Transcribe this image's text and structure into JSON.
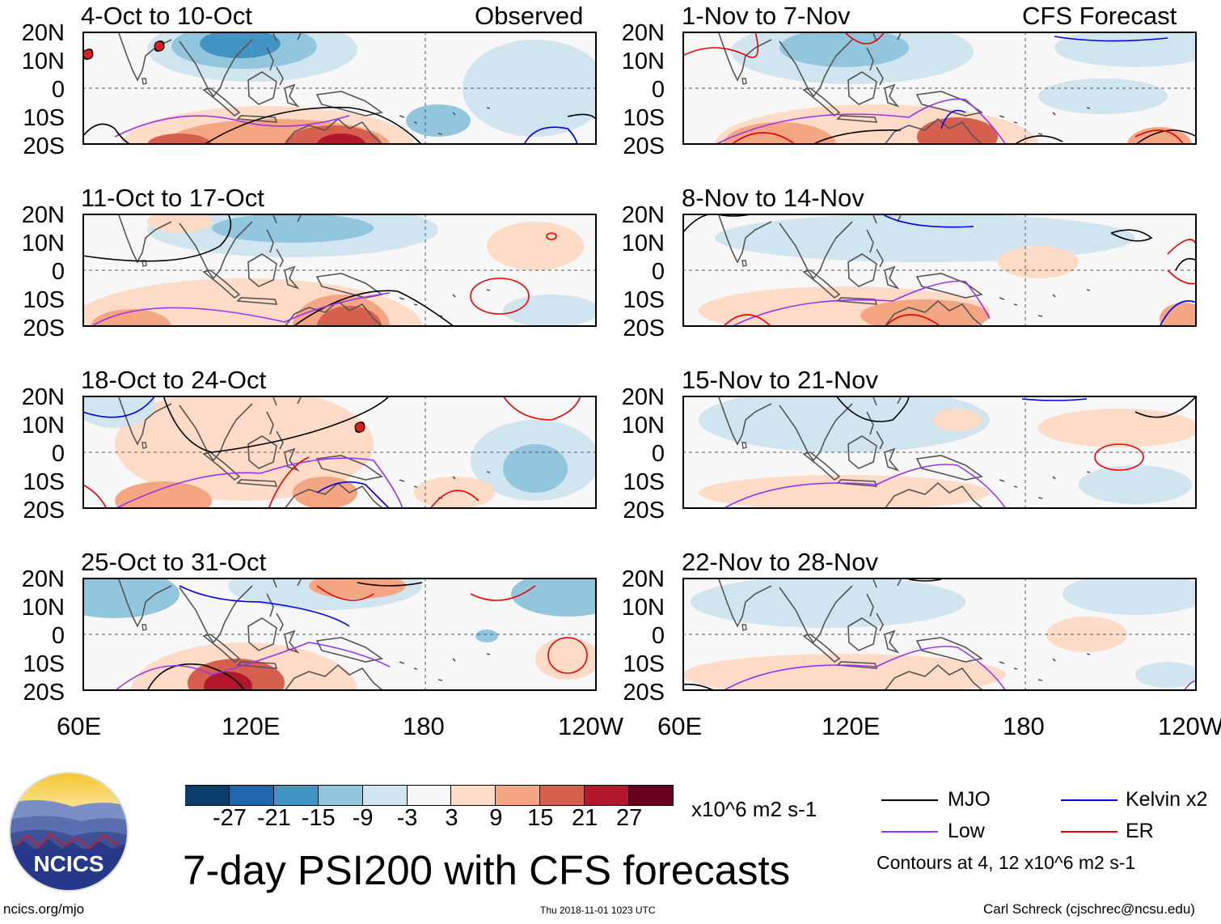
{
  "panels": {
    "left": [
      {
        "title": "4-Oct to 10-Oct",
        "tag": "Observed"
      },
      {
        "title": "11-Oct to 17-Oct",
        "tag": ""
      },
      {
        "title": "18-Oct to 24-Oct",
        "tag": ""
      },
      {
        "title": "25-Oct to 31-Oct",
        "tag": ""
      }
    ],
    "right": [
      {
        "title": "1-Nov to 7-Nov",
        "tag": "CFS Forecast"
      },
      {
        "title": "8-Nov to 14-Nov",
        "tag": ""
      },
      {
        "title": "15-Nov to 21-Nov",
        "tag": ""
      },
      {
        "title": "22-Nov to 28-Nov",
        "tag": ""
      }
    ]
  },
  "lat_labels": [
    "20N",
    "10N",
    "0",
    "10S",
    "20S"
  ],
  "lon_labels": [
    "60E",
    "120E",
    "180",
    "120W"
  ],
  "colorbar": {
    "colors": [
      "#0a3d6b",
      "#2166ac",
      "#4393c3",
      "#92c5de",
      "#d1e5f0",
      "#f7f7f7",
      "#fddbc7",
      "#f4a582",
      "#d6604d",
      "#b2182b",
      "#67001f"
    ],
    "ticks": [
      "-27",
      "-21",
      "-15",
      "-9",
      "-3",
      "3",
      "9",
      "15",
      "21",
      "27"
    ],
    "units": "x10^6 m2 s-1"
  },
  "legend": {
    "items": [
      {
        "label": "MJO",
        "color": "#000000"
      },
      {
        "label": "Kelvin x2",
        "color": "#0000ee"
      },
      {
        "label": "Low",
        "color": "#9933ee"
      },
      {
        "label": "ER",
        "color": "#ee0000"
      }
    ],
    "note": "Contours at 4, 12 x10^6 m2 s-1"
  },
  "main_title": "7-day PSI200 with CFS forecasts",
  "logo_text": "NCICS",
  "footer": {
    "left": "ncics.org/mjo",
    "center": "Thu 2018-11-01 1023 UTC",
    "right": "Carl Schreck (cjschrec@ncsu.edu)"
  },
  "storm_markers": [
    {
      "panel": "left-0",
      "lon": 62,
      "lat": 12
    },
    {
      "panel": "left-0",
      "lon": 87,
      "lat": 15
    },
    {
      "panel": "left-2",
      "lon": 157,
      "lat": 9
    }
  ]
}
